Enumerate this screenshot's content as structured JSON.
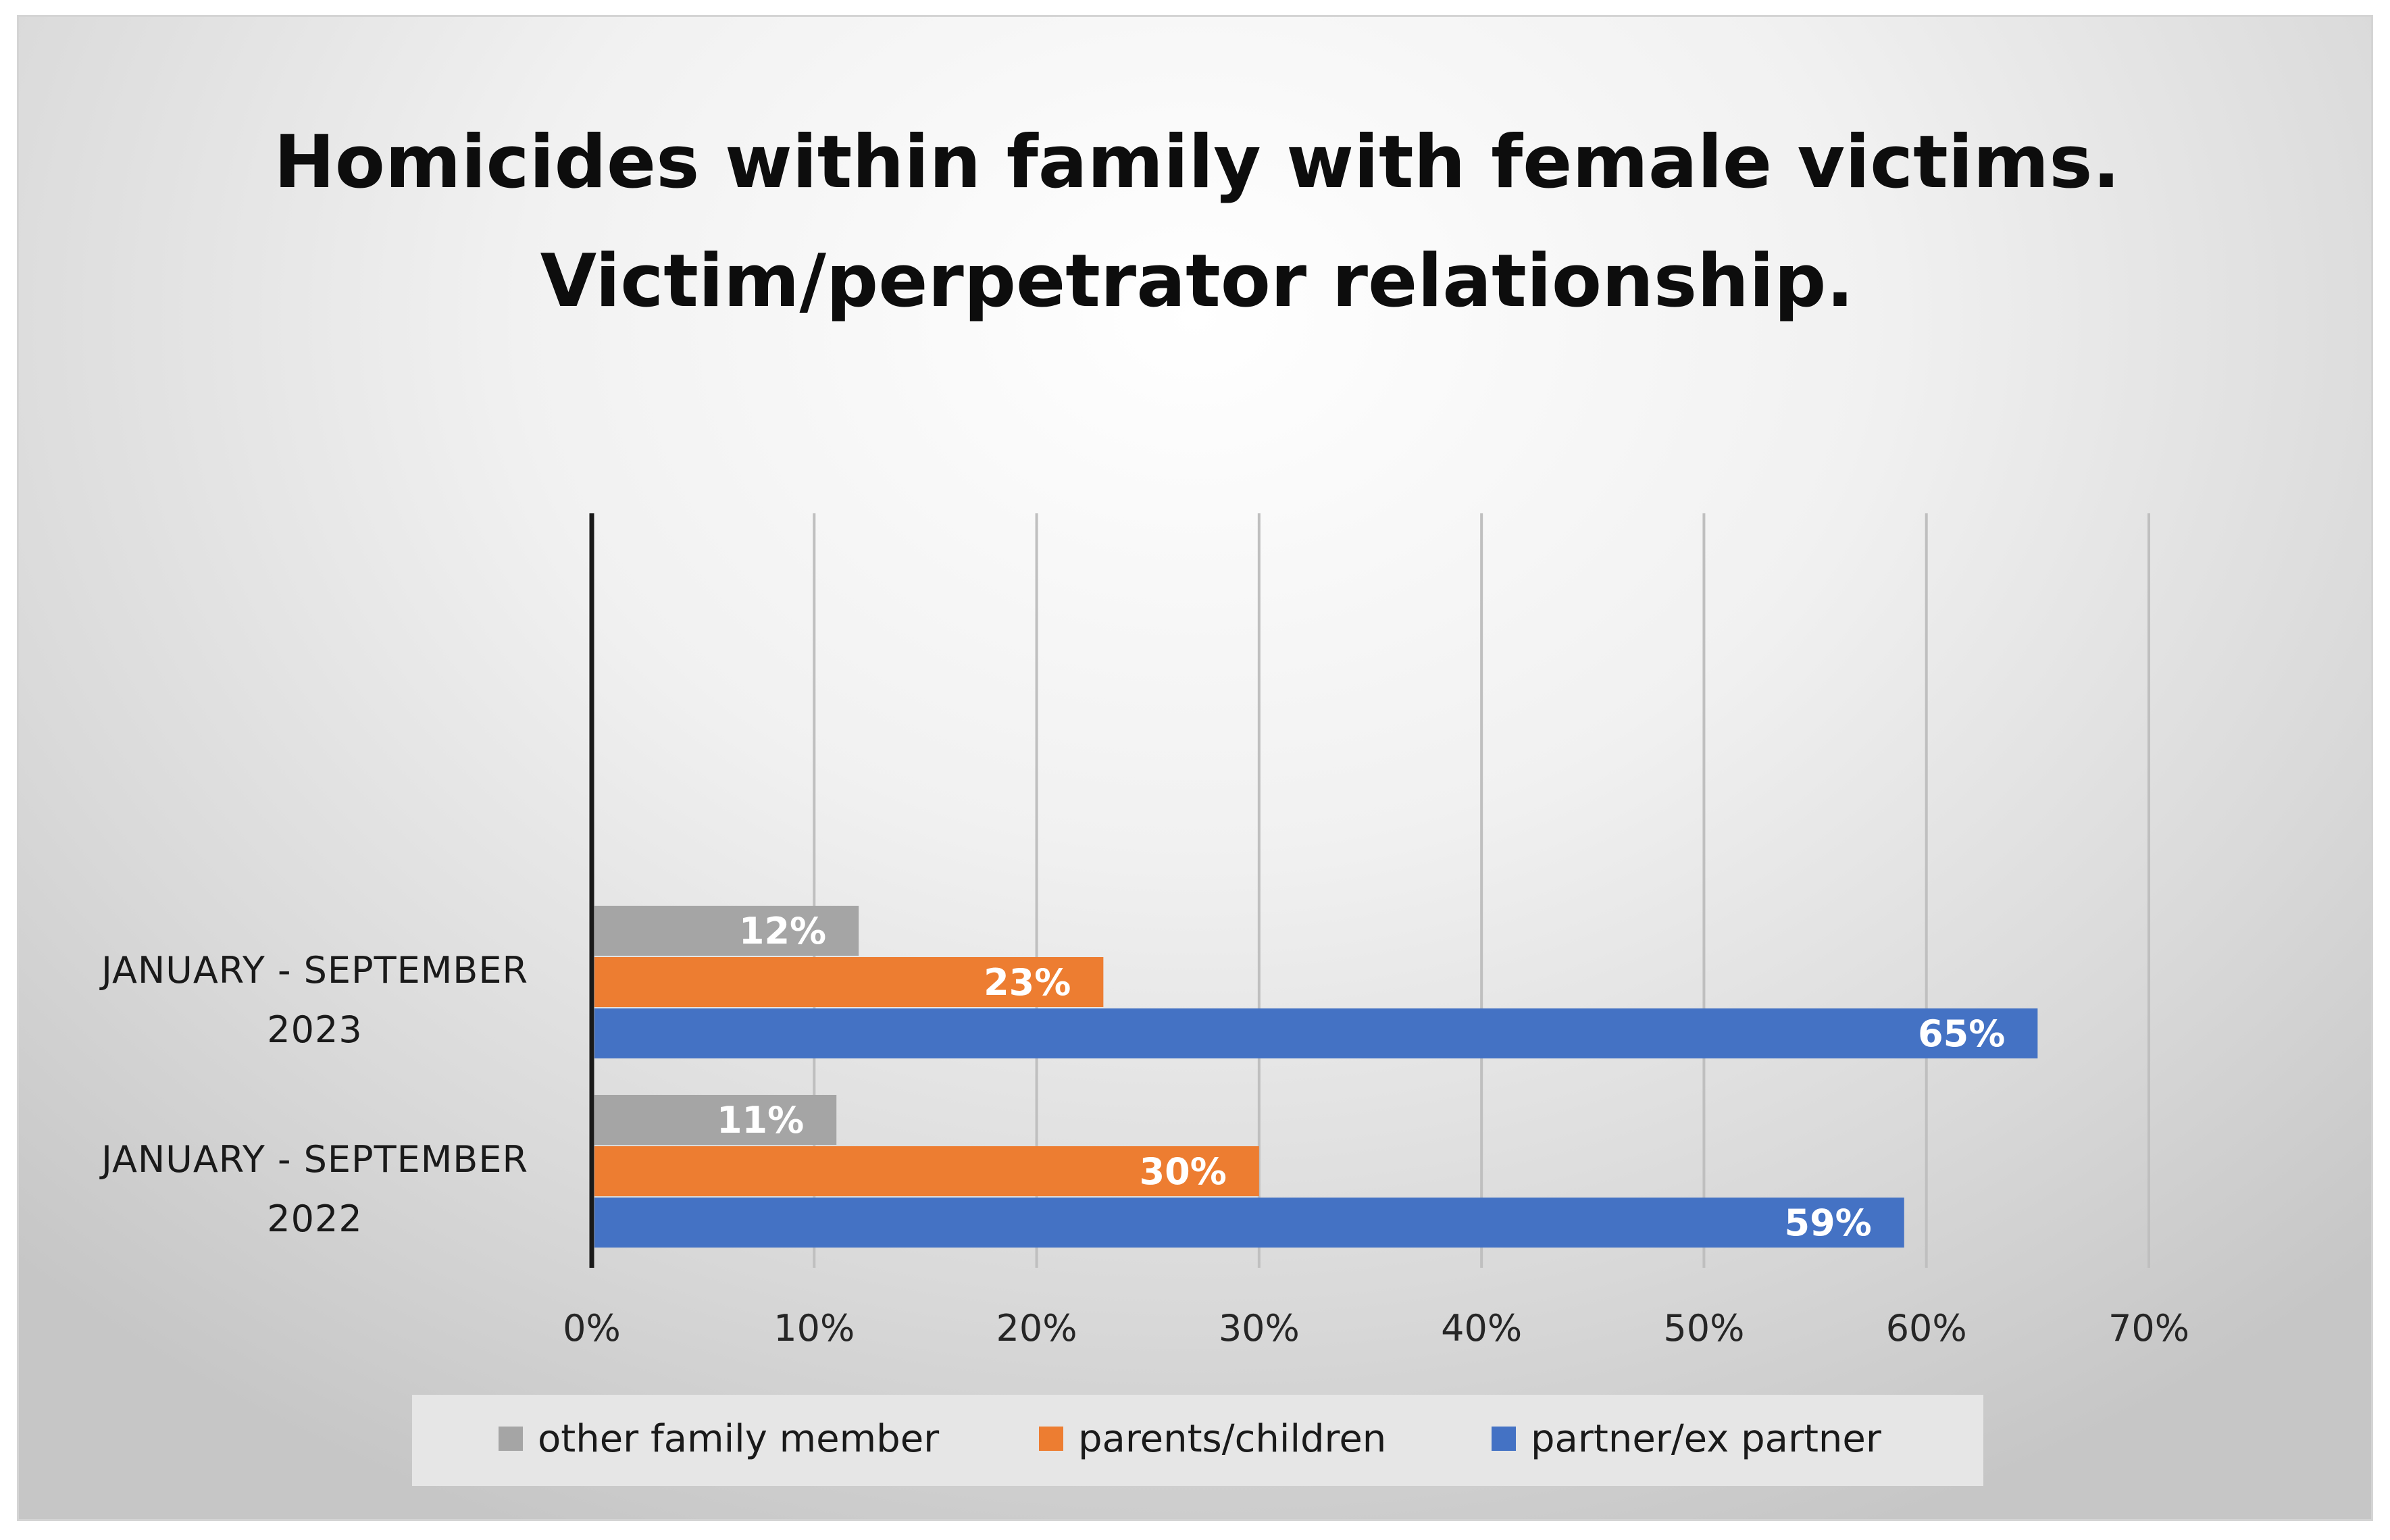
{
  "chart_data": {
    "type": "bar",
    "orientation": "horizontal",
    "title_lines": [
      "Homicides within family with female victims.",
      "Victim/perpetrator relationship."
    ],
    "categories": [
      {
        "line1": "JANUARY - SEPTEMBER",
        "line2": "2023"
      },
      {
        "line1": "JANUARY - SEPTEMBER",
        "line2": "2022"
      }
    ],
    "series": [
      {
        "name": "other family member",
        "color": "#a5a5a5",
        "values": [
          12,
          11
        ],
        "labels": [
          "12%",
          "11%"
        ]
      },
      {
        "name": "parents/children",
        "color": "#ed7d31",
        "values": [
          23,
          30
        ],
        "labels": [
          "23%",
          "30%"
        ]
      },
      {
        "name": "partner/ex partner",
        "color": "#4472c4",
        "values": [
          65,
          59
        ],
        "labels": [
          "65%",
          "59%"
        ]
      }
    ],
    "xlim": [
      0,
      70
    ],
    "xticks": [
      0,
      10,
      20,
      30,
      40,
      50,
      60,
      70
    ],
    "xtick_labels": [
      "0%",
      "10%",
      "20%",
      "30%",
      "40%",
      "50%",
      "60%",
      "70%"
    ],
    "grid": true,
    "legend_position": "bottom"
  }
}
